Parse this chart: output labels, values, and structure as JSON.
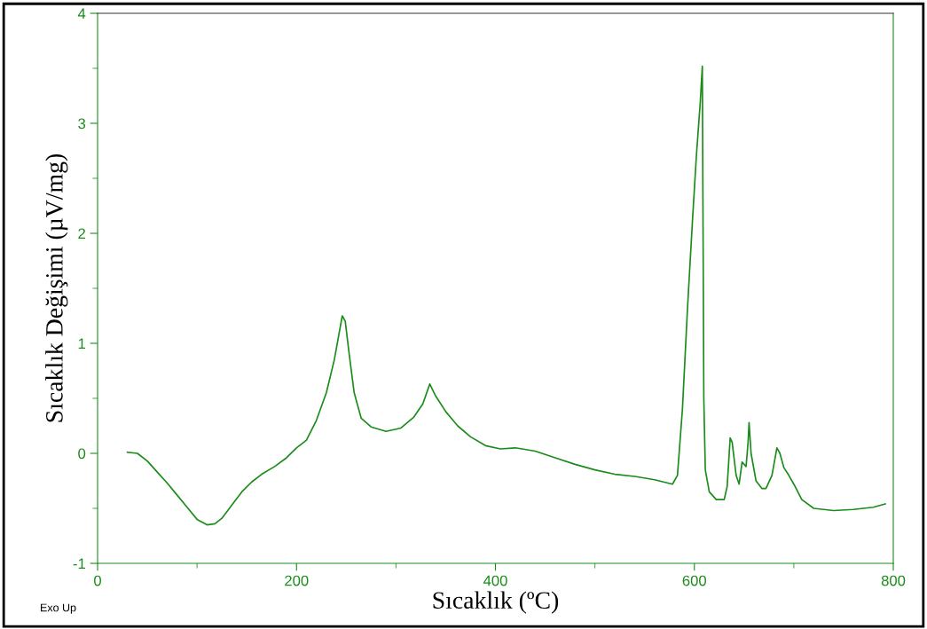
{
  "chart_data": {
    "type": "line",
    "xlabel": "Sıcaklık (ºC)",
    "ylabel": "Sıcaklık Değişimi (µV/mg)",
    "annotations": [
      "Exo Up"
    ],
    "xlim": [
      0,
      800
    ],
    "xticks": [
      0,
      200,
      400,
      600,
      800
    ],
    "ylim": [
      -1,
      4
    ],
    "yticks": [
      -1,
      0,
      1,
      2,
      3,
      4
    ],
    "marker": "none",
    "line_style": "solid",
    "series": [
      {
        "color": "#1a8c1a",
        "x": [
          30,
          40,
          50,
          60,
          70,
          80,
          90,
          100,
          110,
          118,
          125,
          135,
          145,
          155,
          165,
          178,
          190,
          200,
          210,
          220,
          230,
          238,
          243,
          246,
          249,
          253,
          258,
          265,
          275,
          290,
          305,
          318,
          327,
          334,
          340,
          350,
          362,
          375,
          390,
          405,
          420,
          440,
          460,
          480,
          500,
          520,
          540,
          560,
          578,
          583,
          588,
          593,
          598,
          602,
          606,
          608,
          609.5,
          611,
          615,
          622,
          630,
          633,
          636,
          638,
          642,
          645,
          648,
          650,
          652,
          654,
          655,
          657,
          662,
          668,
          672,
          678,
          683,
          686,
          690,
          695,
          700,
          708,
          720,
          740,
          760,
          780,
          792
        ],
        "values": [
          0.01,
          0.0,
          -0.07,
          -0.17,
          -0.27,
          -0.38,
          -0.49,
          -0.6,
          -0.65,
          -0.64,
          -0.59,
          -0.47,
          -0.35,
          -0.26,
          -0.19,
          -0.12,
          -0.04,
          0.05,
          0.12,
          0.3,
          0.55,
          0.85,
          1.1,
          1.25,
          1.2,
          0.9,
          0.55,
          0.32,
          0.24,
          0.2,
          0.23,
          0.33,
          0.45,
          0.63,
          0.52,
          0.38,
          0.25,
          0.15,
          0.07,
          0.04,
          0.05,
          0.02,
          -0.04,
          -0.1,
          -0.15,
          -0.19,
          -0.21,
          -0.24,
          -0.28,
          -0.2,
          0.4,
          1.3,
          2.1,
          2.7,
          3.2,
          3.52,
          0.5,
          -0.15,
          -0.35,
          -0.42,
          -0.42,
          -0.3,
          0.14,
          0.1,
          -0.2,
          -0.28,
          -0.08,
          -0.1,
          -0.12,
          0.1,
          0.28,
          0.0,
          -0.25,
          -0.32,
          -0.32,
          -0.2,
          0.05,
          0.0,
          -0.13,
          -0.2,
          -0.28,
          -0.42,
          -0.5,
          -0.52,
          -0.51,
          -0.49,
          -0.46
        ]
      }
    ]
  }
}
